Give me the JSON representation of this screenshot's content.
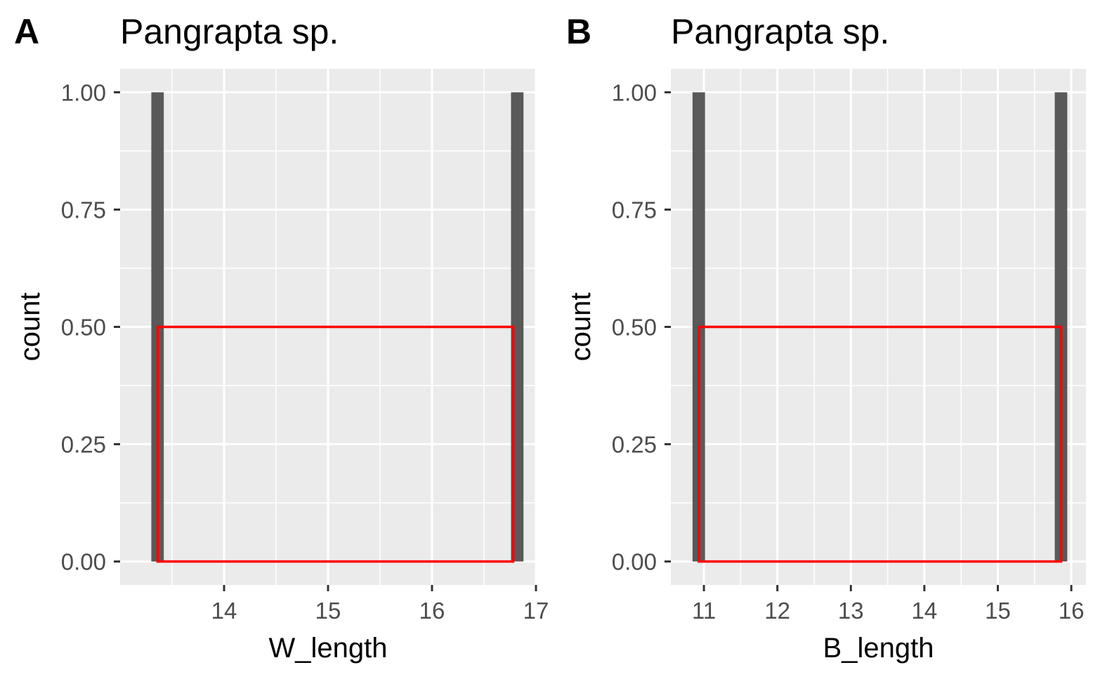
{
  "chart_data": [
    {
      "type": "bar",
      "panel_tag": "A",
      "title": "Pangrapta sp.",
      "xlabel": "W_length",
      "ylabel": "count",
      "xlim": [
        13.0,
        17.0
      ],
      "ylim": [
        -0.05,
        1.05
      ],
      "xticks": [
        14,
        15,
        16,
        17
      ],
      "xtick_labels": [
        "14",
        "15",
        "16",
        "17"
      ],
      "yticks": [
        0,
        0.25,
        0.5,
        0.75,
        1.0
      ],
      "ytick_labels": [
        "0.00",
        "0.25",
        "0.50",
        "0.75",
        "1.00"
      ],
      "grid": true,
      "bars": [
        {
          "x": 13.36,
          "width": 0.12,
          "value": 1
        },
        {
          "x": 16.82,
          "width": 0.12,
          "value": 1
        }
      ],
      "highlight_box": {
        "x0": 13.36,
        "x1": 16.78,
        "y0": 0,
        "y1": 0.5
      },
      "bar_color": "#595959",
      "highlight_color": "#ff0000",
      "panel_bg": "#ebebeb"
    },
    {
      "type": "bar",
      "panel_tag": "B",
      "title": "Pangrapta sp.",
      "xlabel": "B_length",
      "ylabel": "count",
      "xlim": [
        10.55,
        16.2
      ],
      "ylim": [
        -0.05,
        1.05
      ],
      "xticks": [
        11,
        12,
        13,
        14,
        15,
        16
      ],
      "xtick_labels": [
        "11",
        "12",
        "13",
        "14",
        "15",
        "16"
      ],
      "yticks": [
        0,
        0.25,
        0.5,
        0.75,
        1.0
      ],
      "ytick_labels": [
        "0.00",
        "0.25",
        "0.50",
        "0.75",
        "1.00"
      ],
      "grid": true,
      "bars": [
        {
          "x": 10.93,
          "width": 0.17,
          "value": 1
        },
        {
          "x": 15.86,
          "width": 0.17,
          "value": 1
        }
      ],
      "highlight_box": {
        "x0": 10.93,
        "x1": 15.86,
        "y0": 0,
        "y1": 0.5
      },
      "bar_color": "#595959",
      "highlight_color": "#ff0000",
      "panel_bg": "#ebebeb"
    }
  ]
}
